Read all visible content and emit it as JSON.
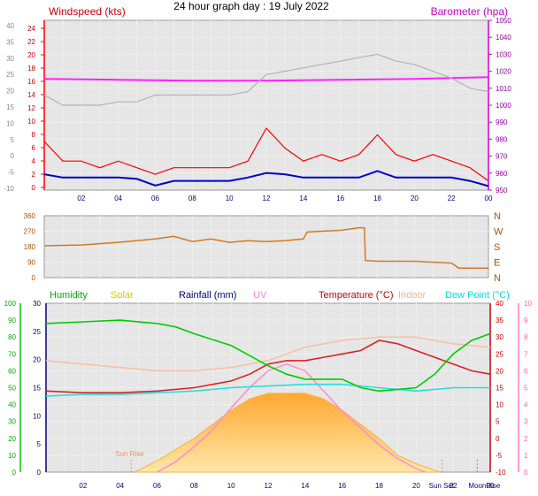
{
  "title": "24 hour graph day : 19 July 2022",
  "chart_data": [
    {
      "id": "wind-baro",
      "type": "line",
      "x_ticks": [
        "02",
        "04",
        "06",
        "08",
        "10",
        "12",
        "14",
        "16",
        "18",
        "20",
        "22",
        "00"
      ],
      "left_title": "Windspeed (kts)",
      "right_title": "Barometer (hpa)",
      "left_outer_ticks": [
        "40",
        "35",
        "30",
        "25",
        "20",
        "15",
        "10",
        "5",
        "0",
        "-5",
        "-10"
      ],
      "left_inner_ticks": [
        "24",
        "22",
        "20",
        "18",
        "16",
        "14",
        "12",
        "10",
        "8",
        "6",
        "4",
        "2",
        "0"
      ],
      "right_ticks": [
        "1050",
        "1040",
        "1030",
        "1020",
        "1010",
        "1000",
        "990",
        "980",
        "970",
        "960",
        "950"
      ],
      "right_range": [
        950,
        1050
      ],
      "grey_range": [
        -10,
        40
      ],
      "speed_range": [
        0,
        25
      ],
      "series": [
        {
          "key": "barometer",
          "color": "#ff20ff",
          "scale": "right",
          "x": [
            0,
            4,
            8,
            12,
            16,
            20,
            24
          ],
          "y": [
            1015.5,
            1015.0,
            1014.5,
            1014.5,
            1015.0,
            1015.5,
            1016.5
          ]
        },
        {
          "key": "grey-gusts",
          "color": "#b4b4b4",
          "scale": "grey",
          "x": [
            0,
            1,
            2,
            3,
            4,
            5,
            6,
            8,
            10,
            11,
            12,
            13,
            14,
            15,
            16,
            17,
            18,
            19,
            20,
            21,
            22,
            23,
            24
          ],
          "y": [
            18,
            15,
            15,
            15,
            16,
            16,
            18,
            18,
            18,
            19,
            24,
            25,
            26,
            27,
            28,
            29,
            30,
            28,
            27,
            25,
            23,
            20,
            19
          ]
        },
        {
          "key": "wind-gust",
          "color": "#ff0000",
          "scale": "speed",
          "x": [
            0,
            1,
            2,
            3,
            4,
            5,
            6,
            7,
            8,
            9,
            10,
            11,
            12,
            13,
            14,
            15,
            16,
            17,
            18,
            19,
            20,
            21,
            22,
            23,
            24
          ],
          "y": [
            7,
            4,
            4,
            3,
            4,
            3,
            2,
            3,
            3,
            3,
            3,
            4,
            9,
            6,
            4,
            5,
            4,
            5,
            8,
            5,
            4,
            5,
            4,
            3,
            1
          ]
        },
        {
          "key": "wind-speed",
          "color": "#0000cc",
          "scale": "speed",
          "x": [
            0,
            1,
            2,
            3,
            4,
            5,
            6,
            7,
            8,
            9,
            10,
            11,
            12,
            13,
            14,
            15,
            16,
            17,
            18,
            19,
            20,
            21,
            22,
            23,
            24
          ],
          "y": [
            2,
            1.5,
            1.5,
            1.5,
            1.5,
            1.3,
            0.3,
            1,
            1,
            1,
            1,
            1.5,
            2.2,
            2,
            1.5,
            1.5,
            1.5,
            1.5,
            2.5,
            1.5,
            1.5,
            1.5,
            1.5,
            1,
            0.2
          ]
        }
      ]
    },
    {
      "id": "direction",
      "type": "line",
      "left_ticks": [
        "360",
        "270",
        "180",
        "90",
        "0"
      ],
      "right_ticks": [
        "N",
        "W",
        "S",
        "E",
        "N"
      ],
      "y_range": [
        0,
        360
      ],
      "series": [
        {
          "key": "wind-direction",
          "color": "#d07a20",
          "x": [
            0,
            2,
            4,
            6,
            7,
            8,
            9,
            10,
            11,
            12,
            13,
            14,
            14.2,
            15,
            16,
            17,
            17.3,
            17.35,
            18,
            20,
            22,
            22.4,
            24
          ],
          "y": [
            185,
            190,
            205,
            225,
            240,
            210,
            225,
            205,
            215,
            210,
            215,
            225,
            265,
            270,
            275,
            290,
            290,
            100,
            95,
            95,
            85,
            55,
            55
          ]
        }
      ]
    },
    {
      "id": "temp-humidity",
      "type": "line",
      "legend": [
        "Humidity",
        "Solar",
        "Rainfall (mm)",
        "UV",
        "Temperature (°C)",
        "Indoor",
        "Dew Point (°C)"
      ],
      "legend_colors": [
        "#00aa00",
        "#cccc00",
        "#000080",
        "#ff80ff",
        "#cc0000",
        "#f0b090",
        "#00e0e0"
      ],
      "humidity_ticks": [
        "100",
        "90",
        "80",
        "70",
        "60",
        "50",
        "40",
        "30",
        "20",
        "10",
        "0"
      ],
      "solar_ticks": [
        "30",
        "25",
        "20",
        "15",
        "10",
        "5",
        "0"
      ],
      "temp_ticks": [
        "40",
        "35",
        "30",
        "25",
        "20",
        "15",
        "10",
        "5",
        "0",
        "-5",
        "-10"
      ],
      "uv_ticks": [
        "10",
        "9",
        "8",
        "7",
        "6",
        "5",
        "4",
        "3",
        "2",
        "1",
        "0"
      ],
      "sun_rise_label": "Sun Rise",
      "sun_set_label": "Sun Set",
      "moon_rise_label": "MoonRise",
      "markers": {
        "sun_rise": 4.6,
        "sun_set": 21.4,
        "moon_rise": 23.3
      },
      "x_ticks": [
        "02",
        "04",
        "06",
        "08",
        "10",
        "12",
        "14",
        "16",
        "18",
        "20",
        "22",
        "00"
      ],
      "series": [
        {
          "key": "humidity",
          "color": "#00cc00",
          "scale": "humidity",
          "x": [
            0,
            2,
            4,
            6,
            7,
            8,
            10,
            11,
            12,
            13,
            14,
            15,
            16,
            17,
            18,
            19,
            20,
            21,
            22,
            23,
            24
          ],
          "y": [
            88,
            89,
            90,
            88,
            86,
            82,
            75,
            69,
            63,
            58,
            55,
            55,
            55,
            50,
            48,
            49,
            50,
            58,
            70,
            78,
            82
          ]
        },
        {
          "key": "temperature",
          "color": "#dd2020",
          "scale": "temp",
          "x": [
            0,
            2,
            4,
            6,
            8,
            10,
            11,
            12,
            13,
            14,
            15,
            16,
            17,
            18,
            19,
            20,
            21,
            22,
            23,
            24
          ],
          "y": [
            14,
            13.5,
            13.5,
            14,
            15,
            17,
            19,
            22,
            23,
            23,
            24,
            25,
            26,
            29,
            28,
            26,
            24,
            22,
            20,
            19
          ]
        },
        {
          "key": "indoor",
          "color": "#f5c0a0",
          "scale": "temp",
          "x": [
            0,
            2,
            4,
            6,
            8,
            10,
            12,
            14,
            16,
            18,
            20,
            22,
            24
          ],
          "y": [
            23,
            22,
            21,
            20,
            20,
            21,
            23,
            27,
            29,
            30,
            30,
            28,
            27
          ]
        },
        {
          "key": "dew-point",
          "color": "#22e0e0",
          "scale": "temp",
          "x": [
            0,
            2,
            4,
            6,
            8,
            10,
            12,
            14,
            16,
            18,
            20,
            22,
            24
          ],
          "y": [
            12.5,
            13,
            13,
            13.5,
            14,
            15,
            15.5,
            16,
            16,
            15,
            14,
            15,
            15
          ]
        },
        {
          "key": "solar",
          "color": "#ffb040",
          "fill": true,
          "scale": "solar",
          "x": [
            4.8,
            6,
            7,
            8,
            9,
            10,
            11,
            12,
            13,
            14,
            15,
            16,
            17,
            18,
            19,
            20,
            21,
            21.3
          ],
          "y": [
            0,
            2,
            4,
            6,
            8.5,
            11,
            13,
            14,
            14,
            14,
            13,
            11,
            8.5,
            6,
            3,
            1.5,
            0.3,
            0
          ]
        },
        {
          "key": "uv",
          "color": "#ff90cc",
          "scale": "uv",
          "x": [
            6,
            7,
            8,
            9,
            10,
            11,
            12,
            13,
            14,
            15,
            16,
            17,
            18,
            19,
            20,
            20.5
          ],
          "y": [
            0,
            0.6,
            1.5,
            2.5,
            3.8,
            5,
            6,
            6.4,
            6,
            4.8,
            3.6,
            2.6,
            1.6,
            0.8,
            0.2,
            0
          ]
        }
      ]
    }
  ]
}
